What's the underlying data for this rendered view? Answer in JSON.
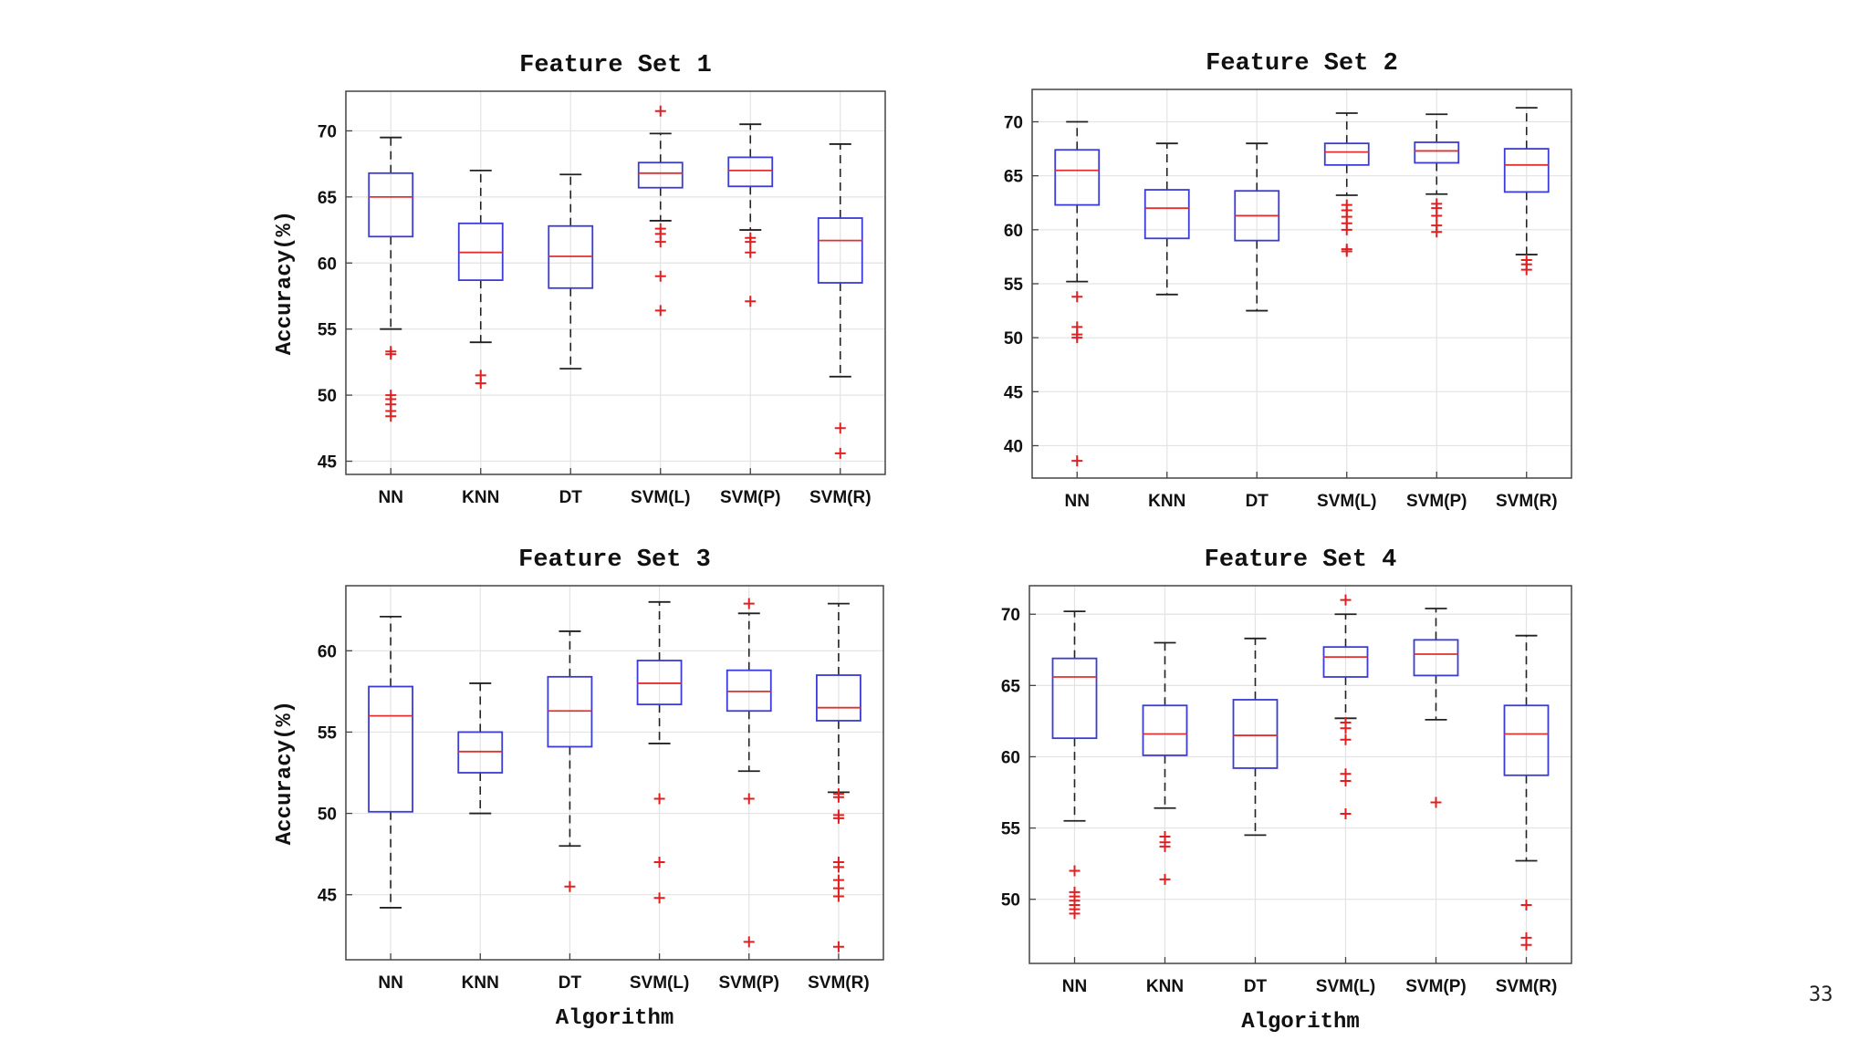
{
  "page_number": "33",
  "chart_data": [
    {
      "type": "box",
      "title": "Feature Set 1",
      "ylabel": "Accuracy(%)",
      "xlabel": "",
      "ylim": [
        44,
        73
      ],
      "yticks": [
        45,
        50,
        55,
        60,
        65,
        70
      ],
      "categories": [
        "NN",
        "KNN",
        "DT",
        "SVM(L)",
        "SVM(P)",
        "SVM(R)"
      ],
      "boxes": [
        {
          "whisker_low": 55,
          "q1": 62,
          "median": 65,
          "q3": 66.8,
          "whisker_high": 69.5,
          "outliers": [
            53.3,
            53.1,
            50,
            49.7,
            49.3,
            48.8,
            48.4
          ]
        },
        {
          "whisker_low": 54,
          "q1": 58.7,
          "median": 60.8,
          "q3": 63,
          "whisker_high": 67,
          "outliers": [
            51.5,
            50.9
          ]
        },
        {
          "whisker_low": 52,
          "q1": 58.1,
          "median": 60.5,
          "q3": 62.8,
          "whisker_high": 66.7,
          "outliers": []
        },
        {
          "whisker_low": 63.2,
          "q1": 65.7,
          "median": 66.8,
          "q3": 67.6,
          "whisker_high": 69.8,
          "outliers": [
            71.5,
            62.6,
            62.2,
            61.6,
            59,
            56.4
          ]
        },
        {
          "whisker_low": 62.5,
          "q1": 65.8,
          "median": 67,
          "q3": 68,
          "whisker_high": 70.5,
          "outliers": [
            61.9,
            61.6,
            60.8,
            57.1
          ]
        },
        {
          "whisker_low": 51.4,
          "q1": 58.5,
          "median": 61.7,
          "q3": 63.4,
          "whisker_high": 69,
          "outliers": [
            47.5,
            45.6
          ]
        }
      ]
    },
    {
      "type": "box",
      "title": "Feature Set 2",
      "ylabel": "",
      "xlabel": "",
      "ylim": [
        37,
        73
      ],
      "yticks": [
        40,
        45,
        50,
        55,
        60,
        65,
        70
      ],
      "categories": [
        "NN",
        "KNN",
        "DT",
        "SVM(L)",
        "SVM(P)",
        "SVM(R)"
      ],
      "boxes": [
        {
          "whisker_low": 55.2,
          "q1": 62.3,
          "median": 65.5,
          "q3": 67.4,
          "whisker_high": 70,
          "outliers": [
            53.8,
            51,
            50.3,
            50,
            38.6
          ]
        },
        {
          "whisker_low": 54,
          "q1": 59.2,
          "median": 62,
          "q3": 63.7,
          "whisker_high": 68,
          "outliers": []
        },
        {
          "whisker_low": 52.5,
          "q1": 59,
          "median": 61.3,
          "q3": 63.6,
          "whisker_high": 68,
          "outliers": []
        },
        {
          "whisker_low": 63.2,
          "q1": 66,
          "median": 67.2,
          "q3": 68,
          "whisker_high": 70.8,
          "outliers": [
            62.3,
            61.8,
            61.2,
            60.6,
            60,
            58.2,
            58
          ]
        },
        {
          "whisker_low": 63.3,
          "q1": 66.2,
          "median": 67.3,
          "q3": 68.1,
          "whisker_high": 70.7,
          "outliers": [
            62.4,
            62,
            61.3,
            60.4,
            59.8
          ]
        },
        {
          "whisker_low": 57.7,
          "q1": 63.5,
          "median": 66,
          "q3": 67.5,
          "whisker_high": 71.3,
          "outliers": [
            57.2,
            56.8,
            56.3
          ]
        }
      ]
    },
    {
      "type": "box",
      "title": "Feature Set 3",
      "ylabel": "Accuracy(%)",
      "xlabel": "Algorithm",
      "ylim": [
        41,
        64
      ],
      "yticks": [
        45,
        50,
        55,
        60
      ],
      "categories": [
        "NN",
        "KNN",
        "DT",
        "SVM(L)",
        "SVM(P)",
        "SVM(R)"
      ],
      "boxes": [
        {
          "whisker_low": 44.2,
          "q1": 50.1,
          "median": 56,
          "q3": 57.8,
          "whisker_high": 62.1,
          "outliers": []
        },
        {
          "whisker_low": 50,
          "q1": 52.5,
          "median": 53.8,
          "q3": 55,
          "whisker_high": 58,
          "outliers": []
        },
        {
          "whisker_low": 48,
          "q1": 54.1,
          "median": 56.3,
          "q3": 58.4,
          "whisker_high": 61.2,
          "outliers": [
            45.5
          ]
        },
        {
          "whisker_low": 54.3,
          "q1": 56.7,
          "median": 58,
          "q3": 59.4,
          "whisker_high": 63,
          "outliers": [
            50.9,
            47,
            44.8
          ]
        },
        {
          "whisker_low": 52.6,
          "q1": 56.3,
          "median": 57.5,
          "q3": 58.8,
          "whisker_high": 62.3,
          "outliers": [
            62.9,
            50.9,
            42.1
          ]
        },
        {
          "whisker_low": 51.3,
          "q1": 55.7,
          "median": 56.5,
          "q3": 58.5,
          "whisker_high": 62.9,
          "outliers": [
            51.2,
            51,
            49.9,
            49.7,
            47,
            46.7,
            45.9,
            45.4,
            44.9,
            41.8
          ]
        }
      ]
    },
    {
      "type": "box",
      "title": "Feature Set 4",
      "ylabel": "",
      "xlabel": "Algorithm",
      "ylim": [
        45.5,
        72
      ],
      "yticks": [
        50,
        55,
        60,
        65,
        70
      ],
      "categories": [
        "NN",
        "KNN",
        "DT",
        "SVM(L)",
        "SVM(P)",
        "SVM(R)"
      ],
      "boxes": [
        {
          "whisker_low": 55.5,
          "q1": 61.3,
          "median": 65.6,
          "q3": 66.9,
          "whisker_high": 70.2,
          "outliers": [
            52,
            50.5,
            50.2,
            49.9,
            49.6,
            49.3,
            49
          ]
        },
        {
          "whisker_low": 56.4,
          "q1": 60.1,
          "median": 61.6,
          "q3": 63.6,
          "whisker_high": 68,
          "outliers": [
            54.4,
            54,
            53.7,
            51.4
          ]
        },
        {
          "whisker_low": 54.5,
          "q1": 59.2,
          "median": 61.5,
          "q3": 64,
          "whisker_high": 68.3,
          "outliers": []
        },
        {
          "whisker_low": 62.7,
          "q1": 65.6,
          "median": 67,
          "q3": 67.7,
          "whisker_high": 70,
          "outliers": [
            71,
            62.4,
            62,
            61.2,
            58.8,
            58.3,
            56
          ]
        },
        {
          "whisker_low": 62.6,
          "q1": 65.7,
          "median": 67.2,
          "q3": 68.2,
          "whisker_high": 70.4,
          "outliers": [
            56.8
          ]
        },
        {
          "whisker_low": 52.7,
          "q1": 58.7,
          "median": 61.6,
          "q3": 63.6,
          "whisker_high": 68.5,
          "outliers": [
            49.6,
            47.3,
            46.8
          ]
        }
      ]
    }
  ]
}
